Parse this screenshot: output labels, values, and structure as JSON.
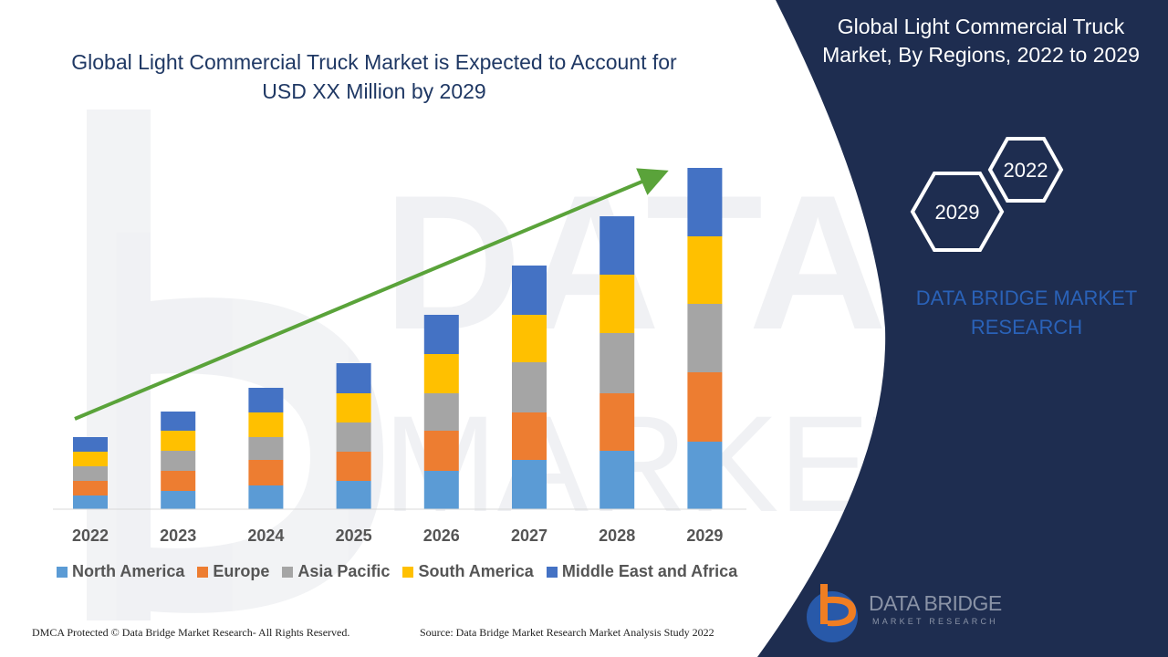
{
  "chart_data": {
    "type": "bar",
    "stacked": true,
    "title": "Global Light Commercial Truck Market is Expected to Account for USD XX Million by 2029",
    "categories": [
      "2022",
      "2023",
      "2024",
      "2025",
      "2026",
      "2027",
      "2028",
      "2029"
    ],
    "series": [
      {
        "name": "North America",
        "color": "#5b9bd5",
        "values": [
          15,
          20,
          26,
          31,
          42,
          54,
          64,
          74
        ]
      },
      {
        "name": "Europe",
        "color": "#ed7d31",
        "values": [
          16,
          22,
          28,
          32,
          44,
          52,
          63,
          76
        ]
      },
      {
        "name": "Asia Pacific",
        "color": "#a5a5a5",
        "values": [
          16,
          22,
          25,
          32,
          41,
          55,
          66,
          75
        ]
      },
      {
        "name": "South America",
        "color": "#ffc000",
        "values": [
          16,
          22,
          27,
          32,
          43,
          52,
          64,
          74
        ]
      },
      {
        "name": "Middle East and Africa",
        "color": "#4472c4",
        "values": [
          16,
          21,
          27,
          33,
          43,
          54,
          64,
          75
        ]
      }
    ],
    "legend_position": "bottom",
    "grid": false,
    "trend_arrow": true
  },
  "sidebar": {
    "title": "Global Light Commercial Truck Market, By Regions, 2022 to 2029",
    "hex_labels": [
      "2022",
      "2029"
    ],
    "brand": "DATA BRIDGE MARKET RESEARCH"
  },
  "logo": {
    "name": "DATA BRIDGE",
    "tagline": "MARKET RESEARCH"
  },
  "footer": {
    "copyright": "DMCA Protected © Data Bridge Market Research- All Rights Reserved.",
    "source": "Source: Data Bridge Market Research Market Analysis Study 2022"
  },
  "colors": {
    "panel": "#1e2d50",
    "title": "#1f3864",
    "arrow": "#5aa33a",
    "brand": "#2a62b8",
    "logo_orange": "#f07e22"
  }
}
